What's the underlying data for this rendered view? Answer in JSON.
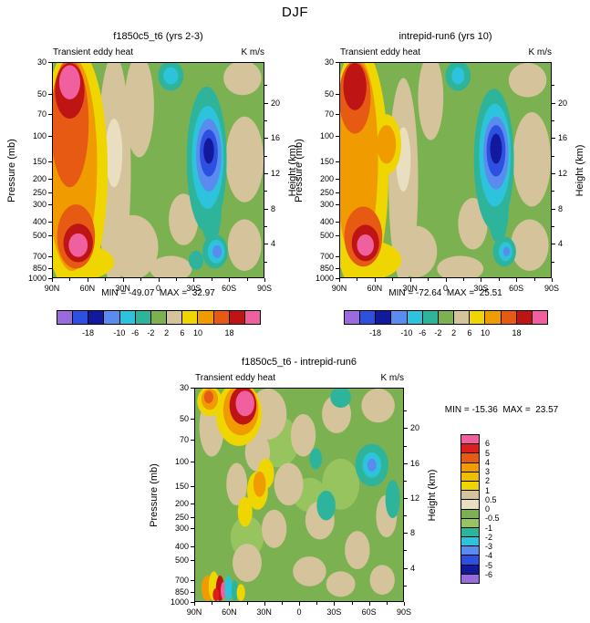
{
  "figure_title": "DJF",
  "chart_data": {
    "type": "heatmap",
    "title": "DJF",
    "variable": "Transient eddy heat",
    "units": "K m/s",
    "axes": {
      "y_left": {
        "label": "Pressure (mb)",
        "scale": "log",
        "ticks": [
          30,
          50,
          70,
          100,
          150,
          200,
          250,
          300,
          400,
          500,
          700,
          850,
          1000
        ]
      },
      "y_right": {
        "label": "Height (km)",
        "ticks": [
          20,
          16,
          12,
          8,
          4
        ],
        "minor_ticks": [
          22,
          18,
          14,
          10,
          6,
          2
        ]
      },
      "x": {
        "ticks": [
          "90N",
          "60N",
          "30N",
          "0",
          "30S",
          "60S",
          "90S"
        ]
      }
    },
    "palette": {
      "green": "#7CB152",
      "green2": "#97C45E",
      "tan": "#D5C39B",
      "paletan": "#E9DFC0",
      "yellow": "#EFD600",
      "amber": "#F0BE00",
      "orange": "#F09C00",
      "ored": "#E65A14",
      "red": "#DC1E1E",
      "dred": "#BE1414",
      "pink": "#F0609E",
      "teal": "#2EB49B",
      "cyan": "#2EC3DC",
      "lblue": "#5A8CF0",
      "blue": "#2D50E1",
      "navy": "#13199C",
      "purple": "#9A6BDC"
    },
    "field_background": "green",
    "colorbar_h": {
      "colors": [
        "purple",
        "blue",
        "navy",
        "lblue",
        "cyan",
        "teal",
        "green",
        "tan",
        "yellow",
        "orange",
        "ored",
        "dred",
        "pink"
      ],
      "labels": [
        "-18",
        "-10",
        "-6",
        "-2",
        "2",
        "6",
        "10",
        "18"
      ],
      "label_boundaries": [
        2,
        4,
        5,
        6,
        7,
        8,
        9,
        11
      ]
    },
    "colorbar_v": {
      "colors": [
        "pink",
        "red",
        "ored",
        "orange",
        "amber",
        "yellow",
        "tan",
        "paletan",
        "green",
        "green2",
        "teal",
        "cyan",
        "lblue",
        "blue",
        "navy",
        "purple"
      ],
      "labels": [
        "6",
        "5",
        "4",
        "3",
        "2",
        "1",
        "0.5",
        "0",
        "-0.5",
        "-1",
        "-2",
        "-3",
        "-4",
        "-5",
        "-6"
      ]
    },
    "panels": [
      {
        "title": "f1850c5_t6 (yrs 2-3)",
        "inner_left": "Transient eddy heat",
        "inner_right": "K m/s",
        "min": -49.07,
        "max": 32.97,
        "stats": "MIN = -49.07  MAX =  32.97",
        "shapes": [
          [
            29,
            50,
            8,
            54,
            "tan"
          ],
          [
            41,
            20,
            7,
            24,
            "tan"
          ],
          [
            38,
            86,
            12,
            15,
            "tan"
          ],
          [
            56,
            96,
            10,
            6,
            "tan"
          ],
          [
            91,
            45,
            9,
            20,
            "tan"
          ],
          [
            91,
            85,
            8,
            12,
            "tan"
          ],
          [
            90,
            7,
            9,
            8,
            "tan"
          ],
          [
            62,
            73,
            7,
            12,
            "tan"
          ],
          [
            29,
            42,
            4,
            16,
            "paletan"
          ],
          [
            56,
            6,
            6,
            7,
            "teal"
          ],
          [
            56,
            6,
            3.5,
            4,
            "cyan"
          ],
          [
            10,
            50,
            16,
            58,
            "yellow"
          ],
          [
            14,
            93,
            15,
            8,
            "yellow"
          ],
          [
            9,
            47,
            12,
            50,
            "orange"
          ],
          [
            8,
            28,
            9,
            30,
            "ored"
          ],
          [
            11,
            81,
            9,
            15,
            "ored"
          ],
          [
            8,
            13,
            7,
            13,
            "dred"
          ],
          [
            12,
            84,
            7,
            9,
            "dred"
          ],
          [
            8,
            9,
            5,
            8,
            "pink"
          ],
          [
            12,
            85,
            4.5,
            5.5,
            "pink"
          ],
          [
            73,
            45,
            9.5,
            34,
            "teal"
          ],
          [
            75,
            69,
            5,
            15,
            "teal"
          ],
          [
            73.5,
            44,
            7.5,
            24,
            "cyan"
          ],
          [
            74,
            43,
            6,
            17,
            "lblue"
          ],
          [
            74,
            42,
            4.3,
            11,
            "blue"
          ],
          [
            74,
            41,
            2.5,
            6,
            "navy"
          ],
          [
            77,
            88,
            6,
            8,
            "teal"
          ],
          [
            77.5,
            88,
            4,
            5.5,
            "cyan"
          ],
          [
            78,
            88,
            2.2,
            3,
            "lblue"
          ],
          [
            68,
            92,
            3.5,
            4.5,
            "teal"
          ]
        ]
      },
      {
        "title": "intrepid-run6 (yrs 10)",
        "inner_left": "Transient eddy heat",
        "inner_right": "K m/s",
        "min": -72.64,
        "max": 25.51,
        "stats": "MIN = -72.64  MAX =  25.51",
        "shapes": [
          [
            30,
            55,
            7,
            48,
            "tan"
          ],
          [
            43,
            16,
            6,
            20,
            "tan"
          ],
          [
            36,
            88,
            10,
            12,
            "tan"
          ],
          [
            57,
            96,
            11,
            6,
            "tan"
          ],
          [
            91,
            45,
            9,
            22,
            "tan"
          ],
          [
            90,
            85,
            9,
            12,
            "tan"
          ],
          [
            89,
            8,
            9,
            8,
            "tan"
          ],
          [
            63,
            75,
            7,
            12,
            "tan"
          ],
          [
            30,
            45,
            3.5,
            15,
            "paletan"
          ],
          [
            56,
            6,
            6,
            7,
            "teal"
          ],
          [
            56,
            6,
            3,
            4,
            "cyan"
          ],
          [
            9,
            50,
            14,
            58,
            "yellow"
          ],
          [
            22,
            38,
            7,
            14,
            "yellow"
          ],
          [
            14,
            92,
            15,
            9,
            "yellow"
          ],
          [
            8,
            45,
            10,
            48,
            "orange"
          ],
          [
            22,
            38,
            4.5,
            9,
            "orange"
          ],
          [
            7,
            16,
            7.5,
            17,
            "ored"
          ],
          [
            11,
            81,
            9,
            14,
            "ored"
          ],
          [
            7,
            11,
            5.5,
            11,
            "dred"
          ],
          [
            12,
            84,
            6.5,
            8.5,
            "dred"
          ],
          [
            12,
            85,
            4,
            5,
            "pink"
          ],
          [
            73,
            45,
            9.5,
            33,
            "teal"
          ],
          [
            75,
            68,
            5,
            16,
            "teal"
          ],
          [
            73.5,
            43,
            7.5,
            24,
            "cyan"
          ],
          [
            74,
            42,
            6,
            17,
            "lblue"
          ],
          [
            74,
            41,
            4.5,
            12,
            "blue"
          ],
          [
            74,
            40,
            2.8,
            7,
            "navy"
          ],
          [
            78,
            88,
            5.5,
            7,
            "teal"
          ],
          [
            78.5,
            88,
            3.2,
            4.5,
            "cyan"
          ],
          [
            79,
            88,
            1.6,
            2.2,
            "lblue"
          ]
        ]
      },
      {
        "title": "f1850c5_t6 - intrepid-run6",
        "inner_left": "Transient eddy heat",
        "inner_right": "K m/s",
        "min": -15.36,
        "max": 23.57,
        "stats": "MIN = -15.36  MAX =  23.57",
        "shapes": [
          [
            40,
            25,
            10,
            12,
            "green2"
          ],
          [
            70,
            45,
            9,
            12,
            "green2"
          ],
          [
            25,
            70,
            8,
            10,
            "green2"
          ],
          [
            55,
            50,
            8,
            8,
            "green2"
          ],
          [
            8,
            18,
            6,
            14,
            "tan"
          ],
          [
            35,
            12,
            9,
            12,
            "tan"
          ],
          [
            52,
            22,
            6,
            10,
            "tan"
          ],
          [
            68,
            12,
            7,
            9,
            "tan"
          ],
          [
            88,
            8,
            8,
            8,
            "tan"
          ],
          [
            45,
            45,
            7,
            10,
            "tan"
          ],
          [
            20,
            45,
            5,
            10,
            "tan"
          ],
          [
            60,
            62,
            7,
            9,
            "tan"
          ],
          [
            38,
            66,
            6,
            9,
            "tan"
          ],
          [
            78,
            76,
            6,
            9,
            "tan"
          ],
          [
            92,
            60,
            5,
            10,
            "tan"
          ],
          [
            25,
            82,
            7,
            9,
            "tan"
          ],
          [
            55,
            86,
            8,
            7,
            "tan"
          ],
          [
            70,
            92,
            7,
            6,
            "tan"
          ],
          [
            90,
            90,
            6,
            7,
            "tan"
          ],
          [
            30,
            30,
            6,
            9,
            "tan"
          ],
          [
            30,
            48,
            5,
            9,
            "yellow"
          ],
          [
            34,
            40,
            4,
            7,
            "yellow"
          ],
          [
            24,
            58,
            3.5,
            7,
            "yellow"
          ],
          [
            31,
            45,
            3,
            6,
            "orange"
          ],
          [
            21,
            12,
            11,
            15,
            "yellow"
          ],
          [
            22,
            10,
            8.5,
            12,
            "orange"
          ],
          [
            23,
            8,
            6.5,
            9,
            "dred"
          ],
          [
            24,
            7,
            4.5,
            6,
            "pink"
          ],
          [
            7,
            6,
            6,
            7,
            "yellow"
          ],
          [
            7,
            5,
            4,
            5,
            "orange"
          ],
          [
            6.5,
            4,
            2.2,
            3,
            "ored"
          ],
          [
            85,
            36,
            8,
            10,
            "teal"
          ],
          [
            85,
            36,
            4.5,
            6,
            "cyan"
          ],
          [
            85,
            36,
            2.2,
            3,
            "lblue"
          ],
          [
            63,
            55,
            4.5,
            7,
            "teal"
          ],
          [
            95,
            52,
            3.5,
            9,
            "teal"
          ],
          [
            70,
            4,
            5,
            5,
            "teal"
          ],
          [
            58,
            33,
            3,
            5,
            "teal"
          ],
          [
            6,
            94,
            3,
            6,
            "orange"
          ],
          [
            9,
            93,
            2.5,
            7,
            "yellow"
          ],
          [
            12,
            94,
            2,
            6,
            "dred"
          ],
          [
            13.5,
            95,
            1.2,
            4,
            "pink"
          ],
          [
            16,
            94,
            1.8,
            6,
            "cyan"
          ],
          [
            19,
            95,
            1.5,
            5,
            "teal"
          ],
          [
            22,
            96,
            2,
            4,
            "yellow"
          ],
          [
            10,
            97,
            1.5,
            3,
            "red"
          ]
        ]
      }
    ]
  }
}
